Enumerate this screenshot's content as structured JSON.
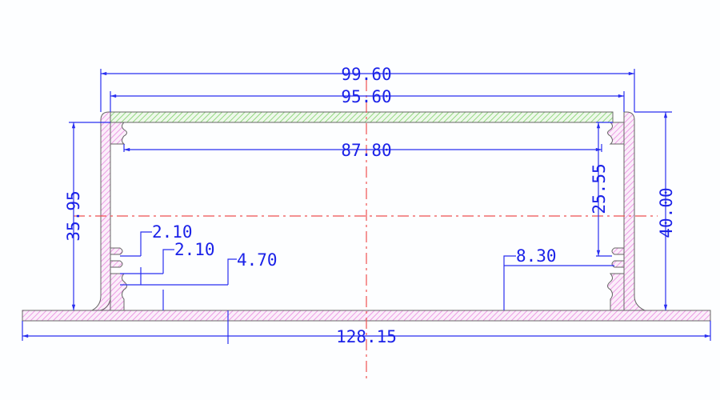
{
  "drawing": {
    "dimensions": {
      "overall_width": "99.60",
      "inner_width": "95.60",
      "slot_span": "87.80",
      "base_width": "128.15",
      "left_height": "35.95",
      "total_height": "40.00",
      "slot_height": "25.55",
      "fin_gap_1": "2.10",
      "fin_gap_2": "2.10",
      "fin_offset": "4.70",
      "right_fin_height": "8.30"
    },
    "colors": {
      "dimension_lines": "#1b22e8",
      "center_lines": "#f05050",
      "profile_hatch": "#e98ae0",
      "lid_hatch": "#7fcf6a"
    }
  }
}
